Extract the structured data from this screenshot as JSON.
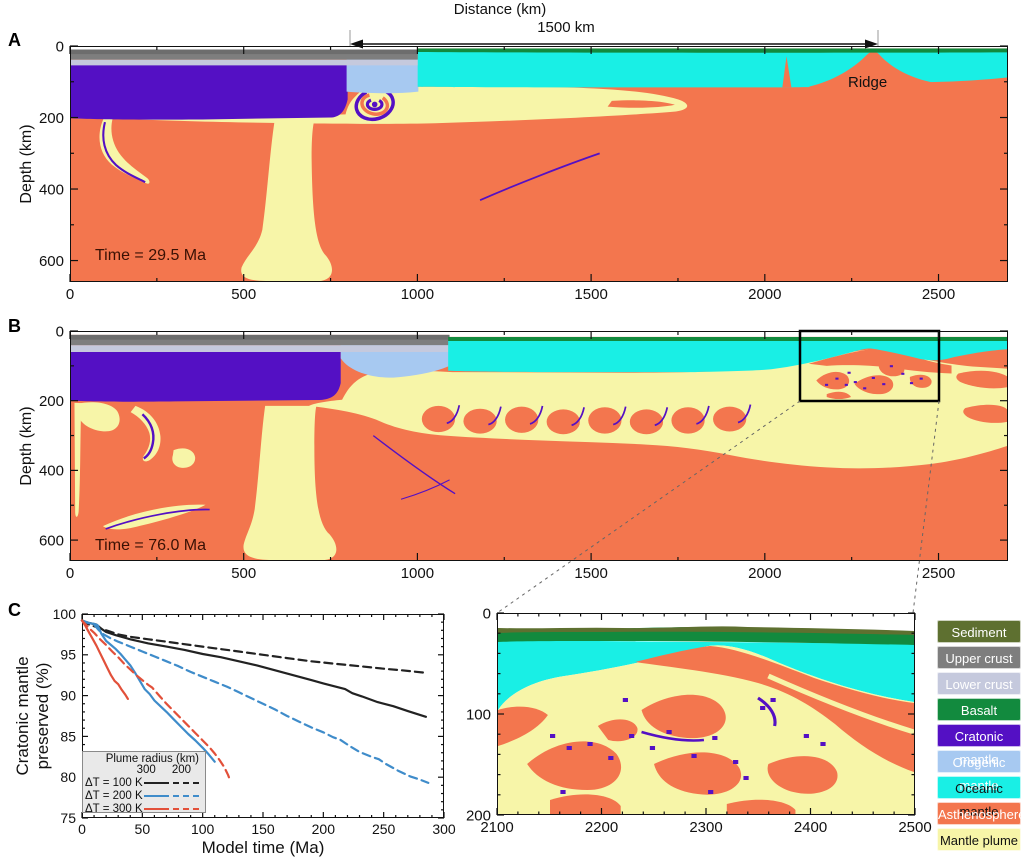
{
  "figure": {
    "top_axis_title": "Distance (km)",
    "scale_bar_label": "1500 km"
  },
  "colors": {
    "sediment": "#5e7030",
    "upper_crust": "#7e7e7e",
    "upper_crust_dark": "#6d6d6d",
    "lower_crust": "#c5c9dd",
    "basalt": "#128a3e",
    "cratonic_mantle": "#5410c4",
    "orogenic_mantle": "#a7c9f1",
    "oceanic_mantle": "#19efe5",
    "asthenosphere": "#f3764e",
    "mantle_plume": "#f7f5a8",
    "chart_black": "#222222",
    "chart_blue": "#3f8cca",
    "chart_red": "#e2503a",
    "time_label_color": "#3a1104"
  },
  "panel_a": {
    "label": "A",
    "time_label": "Time = 29.5 Ma",
    "ridge_label": "Ridge",
    "ylabel": "Depth (km)",
    "x_ticks": [
      0,
      500,
      1000,
      1500,
      2000,
      2500
    ],
    "y_ticks": [
      0,
      200,
      400,
      600
    ],
    "x_range_km": [
      0,
      2700
    ],
    "depth_range_km": [
      0,
      660
    ]
  },
  "panel_b": {
    "label": "B",
    "time_label": "Time = 76.0 Ma",
    "ylabel": "Depth (km)",
    "x_ticks": [
      0,
      500,
      1000,
      1500,
      2000,
      2500
    ],
    "y_ticks": [
      0,
      200,
      400,
      600
    ],
    "x_range_km": [
      0,
      2700
    ],
    "depth_range_km": [
      0,
      660
    ],
    "zoom_box_km": {
      "x": [
        2100,
        2500
      ],
      "depth": [
        0,
        200
      ]
    }
  },
  "panel_c": {
    "label": "C"
  },
  "inset": {
    "x_ticks": [
      2100,
      2200,
      2300,
      2400,
      2500
    ],
    "y_ticks": [
      0,
      100,
      200
    ]
  },
  "chart_data": {
    "type": "line",
    "xlabel": "Model time (Ma)",
    "ylabel": "Cratonic mantle\npreserved (%)",
    "xlim": [
      0,
      300
    ],
    "ylim": [
      75,
      100
    ],
    "x_ticks": [
      0,
      50,
      100,
      150,
      200,
      250,
      300
    ],
    "y_ticks": [
      75,
      80,
      85,
      90,
      95,
      100
    ],
    "grid": false,
    "legend": {
      "title": "Plume radius (km)",
      "columns": [
        "300",
        "200"
      ],
      "rows": [
        {
          "label": "ΔT = 100 K",
          "color": "#222222"
        },
        {
          "label": "ΔT = 200 K",
          "color": "#3f8cca"
        },
        {
          "label": "ΔT = 300 K",
          "color": "#e2503a"
        }
      ],
      "position": "lower-left"
    },
    "series": [
      {
        "name": "ΔT = 100 K, plume radius 300 km",
        "color": "#222222",
        "dash": false,
        "points": [
          [
            0,
            99.2
          ],
          [
            6,
            98.9
          ],
          [
            12,
            98.7
          ],
          [
            16,
            98.2
          ],
          [
            20,
            97.8
          ],
          [
            28,
            97.4
          ],
          [
            40,
            96.9
          ],
          [
            55,
            96.4
          ],
          [
            70,
            96.0
          ],
          [
            85,
            95.6
          ],
          [
            100,
            95.1
          ],
          [
            115,
            94.7
          ],
          [
            130,
            94.2
          ],
          [
            145,
            93.7
          ],
          [
            160,
            93.1
          ],
          [
            175,
            92.5
          ],
          [
            190,
            91.9
          ],
          [
            200,
            91.5
          ],
          [
            210,
            91.1
          ],
          [
            218,
            90.8
          ],
          [
            224,
            90.3
          ],
          [
            232,
            89.9
          ],
          [
            245,
            89.2
          ],
          [
            258,
            88.7
          ],
          [
            270,
            88.1
          ],
          [
            285,
            87.4
          ]
        ]
      },
      {
        "name": "ΔT = 100 K, plume radius 200 km",
        "color": "#222222",
        "dash": true,
        "points": [
          [
            0,
            99.2
          ],
          [
            6,
            98.7
          ],
          [
            12,
            98.4
          ],
          [
            16,
            98.2
          ],
          [
            22,
            97.9
          ],
          [
            30,
            97.5
          ],
          [
            40,
            97.2
          ],
          [
            55,
            96.9
          ],
          [
            70,
            96.6
          ],
          [
            90,
            96.2
          ],
          [
            110,
            95.8
          ],
          [
            130,
            95.4
          ],
          [
            150,
            95.0
          ],
          [
            170,
            94.6
          ],
          [
            190,
            94.2
          ],
          [
            210,
            93.9
          ],
          [
            230,
            93.6
          ],
          [
            250,
            93.3
          ],
          [
            265,
            93.1
          ],
          [
            285,
            92.8
          ]
        ]
      },
      {
        "name": "ΔT = 200 K, plume radius 300 km",
        "color": "#3f8cca",
        "dash": false,
        "points": [
          [
            0,
            99.2
          ],
          [
            5,
            98.9
          ],
          [
            10,
            98.8
          ],
          [
            13,
            98.6
          ],
          [
            16,
            97.6
          ],
          [
            20,
            96.7
          ],
          [
            24,
            96.2
          ],
          [
            28,
            95.7
          ],
          [
            32,
            95.1
          ],
          [
            36,
            94.4
          ],
          [
            40,
            93.7
          ],
          [
            44,
            92.8
          ],
          [
            48,
            91.8
          ],
          [
            52,
            90.8
          ],
          [
            56,
            90.2
          ],
          [
            60,
            89.4
          ],
          [
            65,
            88.7
          ],
          [
            70,
            88.0
          ],
          [
            76,
            87.1
          ],
          [
            82,
            86.2
          ],
          [
            88,
            85.3
          ],
          [
            94,
            84.5
          ],
          [
            100,
            83.6
          ],
          [
            105,
            82.8
          ],
          [
            110,
            81.9
          ]
        ]
      },
      {
        "name": "ΔT = 200 K, plume radius 200 km",
        "color": "#3f8cca",
        "dash": true,
        "points": [
          [
            0,
            99.2
          ],
          [
            6,
            98.9
          ],
          [
            10,
            98.7
          ],
          [
            14,
            98.0
          ],
          [
            18,
            97.5
          ],
          [
            24,
            97.0
          ],
          [
            30,
            96.6
          ],
          [
            40,
            96.0
          ],
          [
            50,
            95.4
          ],
          [
            60,
            94.8
          ],
          [
            70,
            94.2
          ],
          [
            80,
            93.6
          ],
          [
            90,
            92.9
          ],
          [
            100,
            92.3
          ],
          [
            110,
            91.7
          ],
          [
            120,
            91.1
          ],
          [
            130,
            90.4
          ],
          [
            140,
            89.7
          ],
          [
            150,
            89.0
          ],
          [
            160,
            88.3
          ],
          [
            170,
            87.5
          ],
          [
            180,
            86.8
          ],
          [
            190,
            86.1
          ],
          [
            200,
            85.5
          ],
          [
            208,
            84.9
          ],
          [
            214,
            84.6
          ],
          [
            222,
            83.8
          ],
          [
            230,
            83.1
          ],
          [
            240,
            82.5
          ],
          [
            246,
            82.2
          ],
          [
            252,
            81.6
          ],
          [
            262,
            80.8
          ],
          [
            272,
            80.1
          ],
          [
            280,
            79.7
          ],
          [
            287,
            79.3
          ]
        ]
      },
      {
        "name": "ΔT = 300 K, plume radius 300 km",
        "color": "#e2503a",
        "dash": false,
        "points": [
          [
            0,
            99.2
          ],
          [
            3,
            98.5
          ],
          [
            6,
            97.7
          ],
          [
            9,
            96.9
          ],
          [
            12,
            96.1
          ],
          [
            15,
            95.2
          ],
          [
            18,
            94.3
          ],
          [
            21,
            93.4
          ],
          [
            24,
            92.5
          ],
          [
            27,
            91.8
          ],
          [
            30,
            91.4
          ],
          [
            33,
            90.7
          ],
          [
            36,
            90.1
          ],
          [
            38,
            89.6
          ]
        ]
      },
      {
        "name": "ΔT = 300 K, plume radius 200 km",
        "color": "#e2503a",
        "dash": true,
        "points": [
          [
            0,
            99.2
          ],
          [
            5,
            98.4
          ],
          [
            10,
            97.7
          ],
          [
            15,
            96.9
          ],
          [
            20,
            96.2
          ],
          [
            25,
            95.4
          ],
          [
            30,
            94.7
          ],
          [
            35,
            93.9
          ],
          [
            40,
            93.2
          ],
          [
            45,
            92.5
          ],
          [
            50,
            91.9
          ],
          [
            55,
            91.3
          ],
          [
            58,
            91.0
          ],
          [
            64,
            90.0
          ],
          [
            70,
            89.0
          ],
          [
            76,
            88.1
          ],
          [
            82,
            87.2
          ],
          [
            88,
            86.3
          ],
          [
            94,
            85.4
          ],
          [
            100,
            84.5
          ],
          [
            106,
            83.6
          ],
          [
            110,
            82.9
          ],
          [
            114,
            82.1
          ],
          [
            118,
            81.2
          ],
          [
            121,
            80.3
          ],
          [
            123,
            79.5
          ]
        ]
      }
    ]
  },
  "material_legend": {
    "items": [
      {
        "label": "Sediment",
        "color": "#5e7030",
        "text_color": "#ffffff"
      },
      {
        "label": "Upper crust",
        "color": "#7e7e7e",
        "text_color": "#ffffff"
      },
      {
        "label": "Lower crust",
        "color": "#c5c9dd",
        "text_color": "#ffffff"
      },
      {
        "label": "Basalt",
        "color": "#128a3e",
        "text_color": "#ffffff"
      },
      {
        "label": "Cratonic mantle",
        "color": "#5410c4",
        "text_color": "#ffffff"
      },
      {
        "label": "Orogenic mantle",
        "color": "#a7c9f1",
        "text_color": "#ffffff"
      },
      {
        "label": "Oceanic mantle",
        "color": "#19efe5",
        "text_color": "#111111"
      },
      {
        "label": "Asthenosphere",
        "color": "#f3764e",
        "text_color": "#ffffff"
      },
      {
        "label": "Mantle plume",
        "color": "#f7f5a8",
        "text_color": "#111111"
      }
    ]
  }
}
